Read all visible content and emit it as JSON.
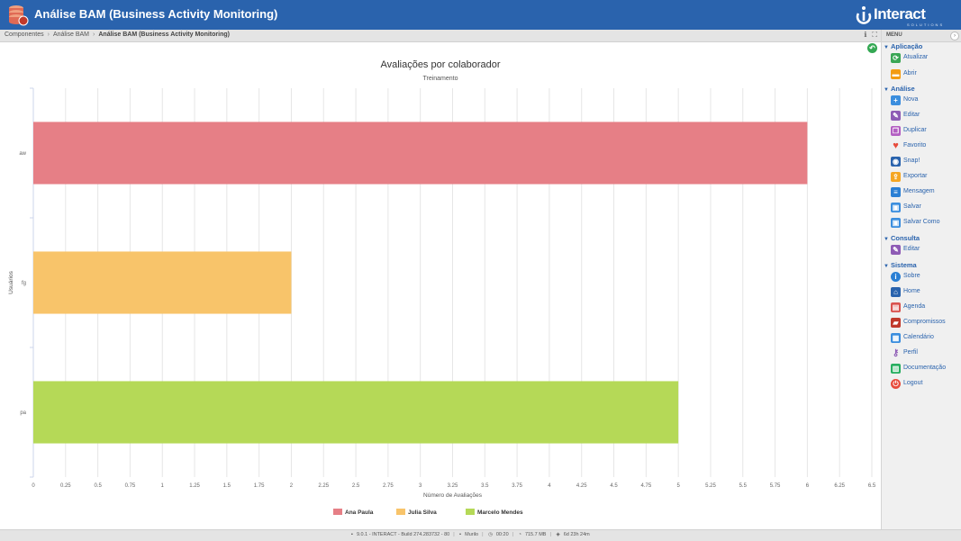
{
  "header": {
    "title": "Análise BAM (Business Activity Monitoring)",
    "logo_text": "Interact",
    "logo_sub": "SOLUTIONS"
  },
  "breadcrumb": {
    "items": [
      "Componentes",
      "Análise BAM",
      "Análise BAM (Business Activity Monitoring)"
    ]
  },
  "sidebar": {
    "menu_label": "MENU",
    "sections": [
      {
        "label": "Aplicação",
        "items": [
          {
            "label": "Atualizar",
            "icon": "refresh-icon"
          },
          {
            "label": "Abrir",
            "icon": "folder-open-icon"
          }
        ]
      },
      {
        "label": "Análise",
        "items": [
          {
            "label": "Nova",
            "icon": "plus-icon"
          },
          {
            "label": "Editar",
            "icon": "pencil-icon"
          },
          {
            "label": "Duplicar",
            "icon": "duplicate-icon"
          },
          {
            "label": "Favorito",
            "icon": "heart-icon"
          },
          {
            "label": "Snap!",
            "icon": "camera-icon"
          },
          {
            "label": "Exportar",
            "icon": "export-icon"
          },
          {
            "label": "Mensagem",
            "icon": "message-icon"
          },
          {
            "label": "Salvar",
            "icon": "save-icon"
          },
          {
            "label": "Salvar Como",
            "icon": "save-as-icon"
          }
        ]
      },
      {
        "label": "Consulta",
        "items": [
          {
            "label": "Editar",
            "icon": "pencil-icon"
          }
        ]
      },
      {
        "label": "Sistema",
        "items": [
          {
            "label": "Sobre",
            "icon": "info-icon"
          },
          {
            "label": "Home",
            "icon": "home-icon"
          },
          {
            "label": "Agenda",
            "icon": "agenda-icon"
          },
          {
            "label": "Compromissos",
            "icon": "briefcase-icon"
          },
          {
            "label": "Calendário",
            "icon": "calendar-icon"
          },
          {
            "label": "Perfil",
            "icon": "key-icon"
          },
          {
            "label": "Documentação",
            "icon": "docs-icon"
          },
          {
            "label": "Logout",
            "icon": "power-icon"
          }
        ]
      }
    ]
  },
  "status_bar": {
    "version": "9.0.1 - INTERACT - Build 274.283732 - 80",
    "user": "Murilo",
    "time": "00:20",
    "memory": "715.7 MB",
    "uptime": "6d 23h 24m"
  },
  "chart_data": {
    "type": "bar",
    "orientation": "horizontal",
    "title": "Avaliações por colaborador",
    "subtitle": "Treinamento",
    "xlabel": "Número de Avaliações",
    "ylabel": "Usuários",
    "categories": [
      "aw",
      "fg",
      "pa"
    ],
    "xlim": [
      0,
      6.5
    ],
    "x_ticks": [
      "0",
      "0.25",
      "0.5",
      "0.75",
      "1",
      "1.25",
      "1.5",
      "1.75",
      "2",
      "2.25",
      "2.5",
      "2.75",
      "3",
      "3.25",
      "3.5",
      "3.75",
      "4",
      "4.25",
      "4.5",
      "4.75",
      "5",
      "5.25",
      "5.5",
      "5.75",
      "6",
      "6.25",
      "6.5"
    ],
    "grid": true,
    "legend_position": "bottom",
    "series": [
      {
        "name": "Ana Paula",
        "color": "#e67f86",
        "category": "aw",
        "value": 6
      },
      {
        "name": "Julia Silva",
        "color": "#f8c46a",
        "category": "fg",
        "value": 2
      },
      {
        "name": "Marcelo Mendes",
        "color": "#b5d957",
        "category": "pa",
        "value": 5
      }
    ]
  }
}
